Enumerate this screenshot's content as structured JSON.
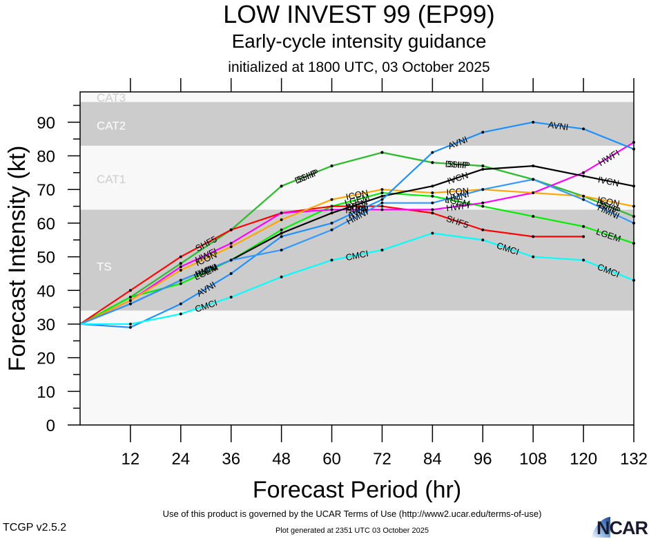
{
  "header": {
    "title": "LOW INVEST 99 (EP99)",
    "subtitle": "Early-cycle intensity guidance",
    "init": "initialized at 1800 UTC, 03 October 2025"
  },
  "footer": {
    "terms": "Use of this product is governed by the UCAR Terms of Use (http://www2.ucar.edu/terms-of-use)",
    "generated": "Plot generated at 2351 UTC   03 October 2025",
    "version": "TCGP v2.5.2",
    "logo": "NCAR"
  },
  "chart_data": {
    "type": "line",
    "title": "LOW INVEST 99 (EP99)",
    "subtitle": "Early-cycle intensity guidance",
    "xlabel": "Forecast Period (hr)",
    "ylabel": "Forecast Intensity (kt)",
    "xlim": [
      0,
      132
    ],
    "ylim": [
      0,
      99
    ],
    "x": [
      0,
      12,
      24,
      36,
      48,
      60,
      72,
      84,
      96,
      108,
      120,
      132
    ],
    "xticks": [
      "12",
      "24",
      "36",
      "48",
      "60",
      "72",
      "84",
      "96",
      "108",
      "120",
      "132"
    ],
    "yticks": [
      "0",
      "10",
      "20",
      "30",
      "40",
      "50",
      "60",
      "70",
      "80",
      "90"
    ],
    "bands": [
      {
        "label": "TS",
        "from": 34,
        "to": 64,
        "shaded": true
      },
      {
        "label": "CAT1",
        "from": 64,
        "to": 83,
        "shaded": false
      },
      {
        "label": "CAT2",
        "from": 83,
        "to": 96,
        "shaded": true
      },
      {
        "label": "CAT3",
        "from": 96,
        "to": 113,
        "shaded": false
      }
    ],
    "colors": {
      "band_shade": "#cccccc",
      "band_light": "#f8f8f8",
      "label_on_light": "#cccccc",
      "label_on_shade": "#ffffff"
    },
    "series": [
      {
        "name": "SHIP",
        "color": "#33bb33",
        "values": [
          30,
          38,
          48,
          58,
          71,
          77,
          81,
          78,
          77,
          73,
          68,
          62
        ],
        "label_at": [
          48,
          84,
          120
        ]
      },
      {
        "name": "DSHP",
        "color": "#33bb33",
        "values": [
          30,
          38,
          48,
          58,
          71,
          77,
          81,
          78,
          77,
          73,
          68,
          62
        ],
        "label_at": [
          48,
          84,
          120
        ]
      },
      {
        "name": "LGEM",
        "color": "#00ee00",
        "values": [
          30,
          38,
          42,
          49,
          58,
          65,
          69,
          68,
          65,
          62,
          59,
          54
        ],
        "label_at": [
          24,
          60,
          84,
          120
        ]
      },
      {
        "name": "SHF5",
        "color": "#ff0000",
        "values": [
          30,
          40,
          50,
          58,
          63,
          65,
          65,
          63,
          58,
          56,
          56,
          null
        ],
        "label_at": [
          24,
          60,
          84
        ]
      },
      {
        "name": "HWFI",
        "color": "#ff00ff",
        "values": [
          30,
          37,
          47,
          54,
          63,
          64,
          64,
          64,
          66,
          69,
          75,
          84
        ],
        "label_at": [
          24,
          60,
          84,
          120
        ]
      },
      {
        "name": "ICON",
        "color": "#ffa500",
        "values": [
          30,
          37,
          46,
          53,
          61,
          67,
          70,
          69,
          70,
          69,
          68,
          65
        ],
        "label_at": [
          24,
          60,
          84,
          120
        ]
      },
      {
        "name": "IVCN",
        "color": "#000000",
        "values": [
          30,
          36,
          43,
          49,
          57,
          63,
          68,
          71,
          76,
          77,
          74,
          71
        ],
        "label_at": [
          24,
          60,
          84,
          120
        ]
      },
      {
        "name": "AVNI",
        "color": "#1e90ff",
        "values": [
          30,
          29,
          36,
          45,
          56,
          60,
          67,
          81,
          87,
          90,
          88,
          82
        ],
        "label_at": [
          24,
          60,
          84,
          108
        ]
      },
      {
        "name": "HMNI",
        "color": "#3399ff",
        "values": [
          30,
          36,
          43,
          49,
          52,
          58,
          66,
          66,
          70,
          73,
          67,
          60
        ],
        "label_at": [
          24,
          60,
          84,
          120
        ]
      },
      {
        "name": "CMCI",
        "color": "#00ffff",
        "values": [
          30,
          30,
          33,
          38,
          44,
          49,
          52,
          57,
          55,
          50,
          49,
          43
        ],
        "label_at": [
          24,
          60,
          96,
          120
        ]
      }
    ]
  }
}
